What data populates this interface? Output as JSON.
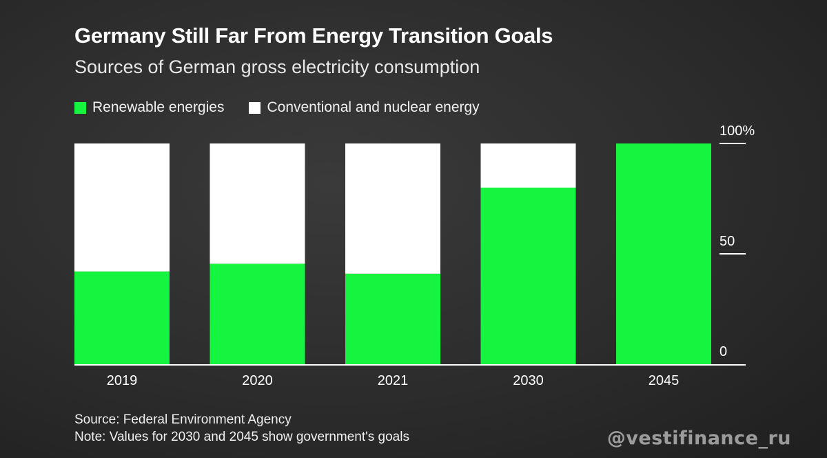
{
  "colors": {
    "renewable": "#17f43f",
    "conventional": "#ffffff",
    "background": "#2c2c2c"
  },
  "chart_data": {
    "type": "bar",
    "stacked": true,
    "title": "Germany Still Far From Energy Transition Goals",
    "subtitle": "Sources of German gross electricity consumption",
    "categories": [
      "2019",
      "2020",
      "2021",
      "2030",
      "2045"
    ],
    "series": [
      {
        "name": "Renewable energies",
        "color": "#17f43f",
        "values": [
          42,
          45.5,
          41,
          80,
          100
        ]
      },
      {
        "name": "Conventional and nuclear energy",
        "color": "#ffffff",
        "values": [
          58,
          54.5,
          59,
          20,
          0
        ]
      }
    ],
    "y_ticks": [
      {
        "value": 0,
        "label": "0"
      },
      {
        "value": 50,
        "label": "50"
      },
      {
        "value": 100,
        "label": "100%"
      }
    ],
    "ylim": [
      0,
      100
    ],
    "xlabel": "",
    "ylabel": "",
    "legend_position": "top-left"
  },
  "footer": {
    "source": "Source: Federal Environment Agency",
    "note": "Note: Values for 2030 and 2045 show government's goals"
  },
  "watermark": "@vestifinance_ru"
}
